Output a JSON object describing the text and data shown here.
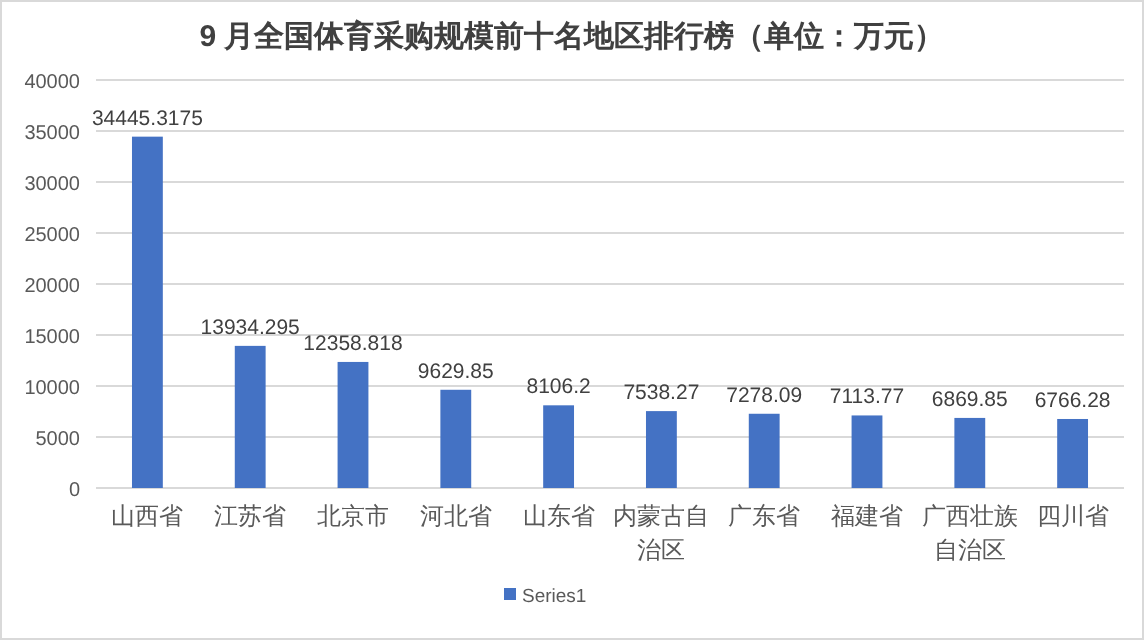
{
  "chart_data": {
    "type": "bar",
    "title": "9 月全国体育采购规模前十名地区排行榜（单位：万元）",
    "categories": [
      "山西省",
      "江苏省",
      "北京市",
      "河北省",
      "山东省",
      "内蒙古自治区",
      "广东省",
      "福建省",
      "广西壮族自治区",
      "四川省"
    ],
    "series": [
      {
        "name": "Series1",
        "color": "#4472c4",
        "values": [
          34445.3175,
          13934.295,
          12358.818,
          9629.85,
          8106.2,
          7538.27,
          7278.09,
          7113.77,
          6869.85,
          6766.28
        ]
      }
    ],
    "ylim": [
      0,
      40000
    ],
    "yticks": [
      0,
      5000,
      10000,
      15000,
      20000,
      25000,
      30000,
      35000,
      40000
    ],
    "grid": "y",
    "data_labels": true,
    "legend": "bottom"
  }
}
